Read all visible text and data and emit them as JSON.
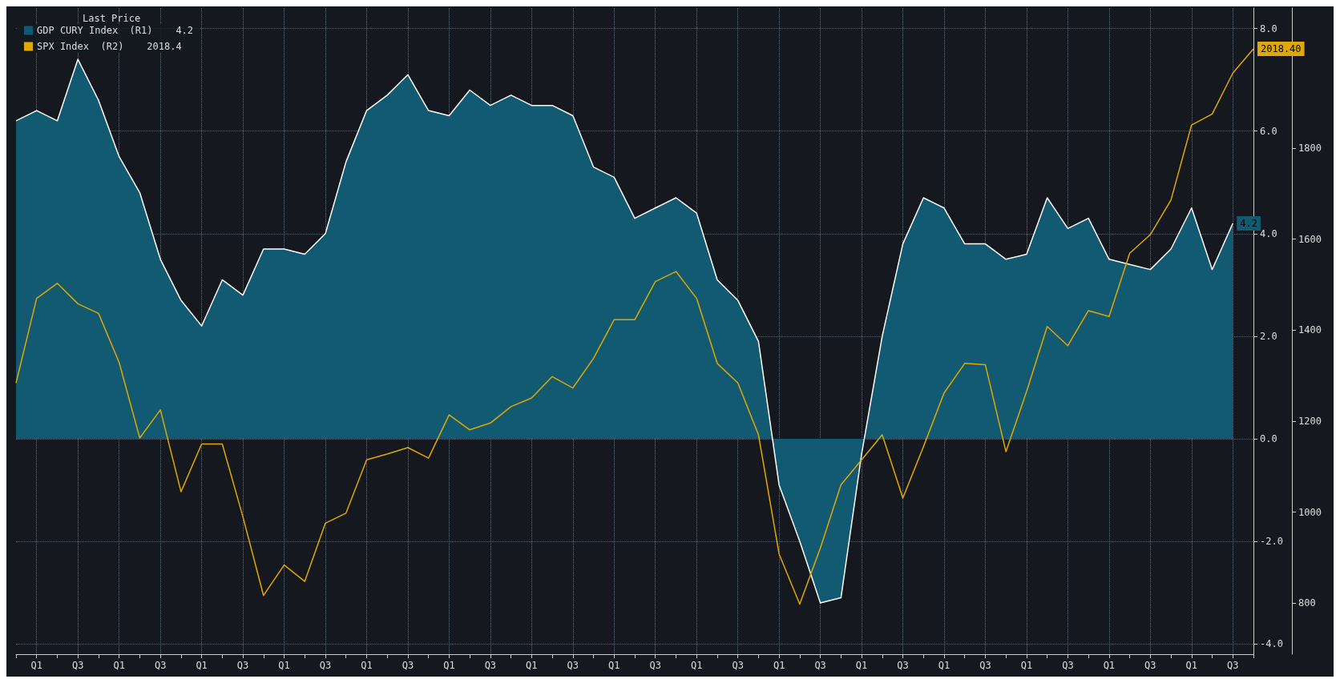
{
  "chart_data": {
    "type": "area",
    "legend_title": "Last Price",
    "legend": "top left",
    "grid": true,
    "marker": "none",
    "line_style": "solid",
    "categories": [
      null,
      "Q1",
      null,
      "Q3",
      null,
      "Q1",
      null,
      "Q3",
      null,
      "Q1",
      null,
      "Q3",
      null,
      "Q1",
      null,
      "Q3",
      null,
      "Q1",
      null,
      "Q3",
      null,
      "Q1",
      null,
      "Q3",
      null,
      "Q1",
      null,
      "Q3",
      null,
      "Q1",
      null,
      "Q3",
      null,
      "Q1",
      null,
      "Q3",
      null,
      "Q1",
      null,
      "Q3",
      null,
      "Q1",
      null,
      "Q3",
      null,
      "Q1",
      null,
      "Q3",
      null,
      "Q1",
      null,
      "Q3",
      null,
      "Q1",
      null,
      "Q3",
      null,
      "Q1",
      null,
      "Q3",
      null
    ],
    "ylim": [
      -4.2,
      8.4
    ],
    "yticks": [
      {
        "value": -4,
        "label": "-4.0"
      },
      {
        "value": -2,
        "label": "-2.0"
      },
      {
        "value": 0,
        "label": "0.0"
      },
      {
        "value": 2,
        "label": "2.0"
      },
      {
        "value": 4,
        "label": "4.0"
      },
      {
        "value": 6,
        "label": "6.0"
      },
      {
        "value": 8,
        "label": "8.0"
      }
    ],
    "y2lim": [
      688,
      2108
    ],
    "y2ticks": [
      800,
      1000,
      1200,
      1400,
      1600,
      1800
    ],
    "series": [
      {
        "name": "GDP CURY Index  (R1)    4.2",
        "color": "#125a72",
        "values": [
          6.2,
          6.4,
          6.2,
          7.4,
          6.6,
          5.5,
          4.8,
          3.5,
          2.7,
          2.2,
          3.1,
          2.8,
          3.7,
          3.7,
          3.6,
          4.0,
          5.4,
          6.4,
          6.7,
          7.1,
          6.4,
          6.3,
          6.8,
          6.5,
          6.7,
          6.5,
          6.5,
          6.3,
          5.3,
          5.1,
          4.3,
          4.5,
          4.7,
          4.4,
          3.1,
          2.7,
          1.9,
          -0.9,
          -2.0,
          -3.2,
          -3.1,
          -0.3,
          2.0,
          3.8,
          4.7,
          4.5,
          3.8,
          3.8,
          3.5,
          3.6,
          4.7,
          4.1,
          4.3,
          3.5,
          3.4,
          3.3,
          3.7,
          4.5,
          3.3,
          4.2,
          null
        ],
        "value_labels": [
          null,
          null,
          null,
          null,
          null,
          null,
          null,
          null,
          null,
          null,
          null,
          null,
          null,
          null,
          null,
          null,
          null,
          null,
          null,
          null,
          null,
          null,
          null,
          null,
          null,
          null,
          null,
          null,
          null,
          null,
          null,
          null,
          null,
          null,
          null,
          null,
          null,
          null,
          null,
          null,
          null,
          null,
          null,
          null,
          null,
          null,
          null,
          null,
          null,
          null,
          null,
          null,
          null,
          null,
          null,
          null,
          null,
          null,
          null,
          "4.2",
          null
        ]
      },
      {
        "name": "SPX Index  (R2)    2018.4",
        "type": "line",
        "axis": "y2",
        "color": "#e0a800",
        "values": [
          1284,
          1470,
          1503,
          1458,
          1437,
          1329,
          1163,
          1225,
          1045,
          1150,
          1150,
          990,
          817,
          884,
          848,
          976,
          998,
          1115,
          1128,
          1142,
          1119,
          1214,
          1181,
          1196,
          1232,
          1251,
          1298,
          1273,
          1338,
          1423,
          1423,
          1507,
          1529,
          1470,
          1327,
          1284,
          1170,
          908,
          798,
          921,
          1060,
          1115,
          1170,
          1031,
          1144,
          1262,
          1327,
          1324,
          1133,
          1265,
          1408,
          1366,
          1443,
          1430,
          1569,
          1610,
          1686,
          1851,
          1875,
          1965,
          2018.4
        ],
        "value_labels": [
          null,
          null,
          null,
          null,
          null,
          null,
          null,
          null,
          null,
          null,
          null,
          null,
          null,
          null,
          null,
          null,
          null,
          null,
          null,
          null,
          null,
          null,
          null,
          null,
          null,
          null,
          null,
          null,
          null,
          null,
          null,
          null,
          null,
          null,
          null,
          null,
          null,
          null,
          null,
          null,
          null,
          null,
          null,
          null,
          null,
          null,
          null,
          null,
          null,
          null,
          null,
          null,
          null,
          null,
          null,
          null,
          null,
          null,
          null,
          null,
          "2018.40"
        ]
      }
    ]
  }
}
